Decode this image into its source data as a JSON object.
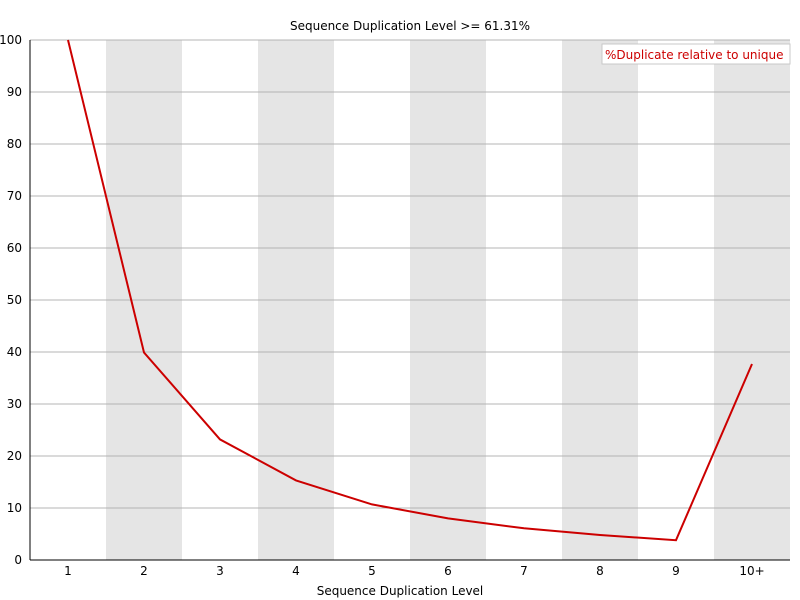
{
  "chart_data": {
    "type": "line",
    "title": "Sequence Duplication Level >= 61.31%",
    "xlabel": "Sequence Duplication Level",
    "ylabel": "",
    "categories": [
      "1",
      "2",
      "3",
      "4",
      "5",
      "6",
      "7",
      "8",
      "9",
      "10+"
    ],
    "series": [
      {
        "name": "%Duplicate relative to unique",
        "values": [
          100,
          39.9,
          23.2,
          15.3,
          10.7,
          8.0,
          6.1,
          4.8,
          3.8,
          37.7
        ],
        "color": "#cc0000"
      }
    ],
    "ylim": [
      0,
      100
    ],
    "yticks": [
      0,
      10,
      20,
      30,
      40,
      50,
      60,
      70,
      80,
      90,
      100
    ],
    "grid": true,
    "band_color": "#e5e5e5",
    "gridline_color": "#b4b4b4",
    "legend_position": "top-right"
  }
}
